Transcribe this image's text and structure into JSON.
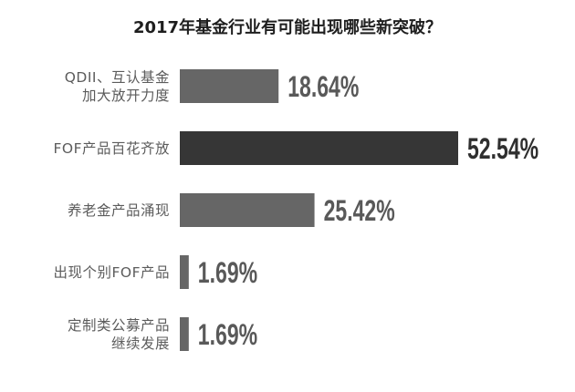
{
  "chart_data": {
    "type": "bar",
    "orientation": "horizontal",
    "title": "2017年基金行业有可能出现哪些新突破？",
    "categories": [
      [
        "QDII、互认基金",
        "加大放开力度"
      ],
      [
        "FOF产品百花齐放"
      ],
      [
        "养老金产品涌现"
      ],
      [
        "出现个别FOF产品"
      ],
      [
        "定制类公募产品",
        "继续发展"
      ]
    ],
    "values": [
      18.64,
      52.54,
      25.42,
      1.69,
      1.69
    ],
    "value_labels": [
      "18.64%",
      "52.54%",
      "25.42%",
      "1.69%",
      "1.69%"
    ],
    "grid": false,
    "legend": false,
    "highlight_index": 1,
    "colors": {
      "bar": "#666666",
      "bar_highlight": "#363636",
      "value_label": "#595959",
      "value_label_highlight": "#2f2f2f",
      "category_label": "#5c5c5c",
      "title": "#1e1e1e"
    }
  }
}
